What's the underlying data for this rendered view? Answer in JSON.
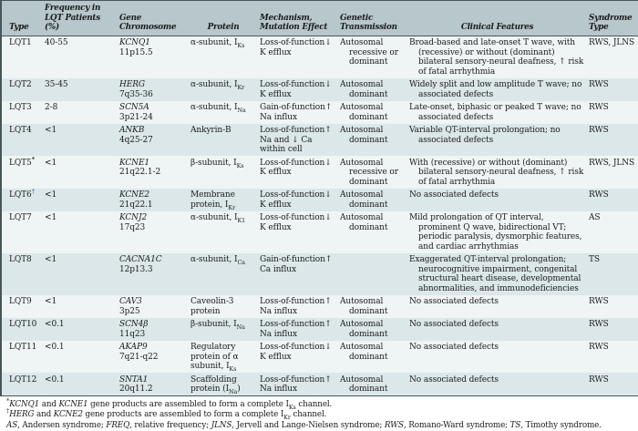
{
  "colors": {
    "header_bg": "#b7c7cb",
    "row_light": "#eff4f4",
    "row_dark": "#dbe7e9",
    "rule": "#46565b",
    "text": "#1c1c1c",
    "page_bg": "#ffffff",
    "dagger_marker": "#4c7fa6",
    "asterisk_marker": "#222222"
  },
  "table": {
    "headers": [
      {
        "id": "type",
        "label": "Type",
        "align": ""
      },
      {
        "id": "frequency",
        "label": "Frequency in\nLQT Patients (%)",
        "align": ""
      },
      {
        "id": "gene-chromosome",
        "label": "Gene\nChromosome",
        "align": ""
      },
      {
        "id": "protein",
        "label": "Protein",
        "align": "center"
      },
      {
        "id": "mechanism",
        "label": "Mechanism,\nMutation Effect",
        "align": ""
      },
      {
        "id": "transmission",
        "label": "Genetic\nTransmission",
        "align": ""
      },
      {
        "id": "clinical-features",
        "label": "Clinical Features",
        "align": "center"
      },
      {
        "id": "syndrome-type",
        "label": "Syndrome\nType",
        "align": ""
      }
    ],
    "rows": [
      {
        "type": "LQT1",
        "marker": "",
        "marker_color": "",
        "frequency": "40-55",
        "gene": "KCNQ1",
        "chromosome": "11p15.5",
        "protein": "α-subunit, I~Ks~",
        "mechanism": "Loss-of-function↓\nK efflux",
        "transmission": "Autosomal recessive or dominant",
        "clinical_features": "Broad-based and late-onset T wave, with (recessive) or without (dominant) bilateral sensory-neural deafness, ↑ risk of fatal arrhythmia",
        "syndrome": "RWS, JLNS"
      },
      {
        "type": "LQT2",
        "marker": "",
        "marker_color": "",
        "frequency": "35-45",
        "gene": "HERG",
        "chromosome": "7q35-36",
        "protein": "α-subunit, I~Kr~",
        "mechanism": "Loss-of-function↓\nK efflux",
        "transmission": "Autosomal dominant",
        "clinical_features": "Widely split and low amplitude T wave; no associated defects",
        "syndrome": "RWS"
      },
      {
        "type": "LQT3",
        "marker": "",
        "marker_color": "",
        "frequency": "2-8",
        "gene": "SCN5A",
        "chromosome": "3p21-24",
        "protein": "α-subunit, I~Na~",
        "mechanism": "Gain-of-function↑\nNa influx",
        "transmission": "Autosomal dominant",
        "clinical_features": "Late-onset, biphasic or peaked T wave; no associated defects",
        "syndrome": "RWS"
      },
      {
        "type": "LQT4",
        "marker": "",
        "marker_color": "",
        "frequency": "<1",
        "gene": "ANKB",
        "chromosome": "4q25-27",
        "protein": "Ankyrin-B",
        "mechanism": "Loss-of-function↑\nNa and ↓ Ca\nwithin cell",
        "transmission": "Autosomal dominant",
        "clinical_features": "Variable QT-interval prolongation; no associated defects",
        "syndrome": "RWS"
      },
      {
        "type": "LQT5",
        "marker": "*",
        "marker_color": "#222222",
        "frequency": "<1",
        "gene": "KCNE1",
        "chromosome": "21q22.1-2",
        "protein": "β-subunit, I~Ks~",
        "mechanism": "Loss-of-function↓\nK efflux",
        "transmission": "Autosomal recessive or dominant",
        "clinical_features": "With (recessive) or without (dominant) bilateral sensory-neural deafness, ↑ risk of fatal arrhythmia",
        "syndrome": "RWS, JLNS"
      },
      {
        "type": "LQT6",
        "marker": "†",
        "marker_color": "#4c7fa6",
        "frequency": "<1",
        "gene": "KCNE2",
        "chromosome": "21q22.1",
        "protein": "Membrane protein, I~Kr~",
        "mechanism": "Loss-of-function↓\nK efflux",
        "transmission": "Autosomal dominant",
        "clinical_features": "No associated defects",
        "syndrome": "RWS"
      },
      {
        "type": "LQT7",
        "marker": "",
        "marker_color": "",
        "frequency": "<1",
        "gene": "KCNJ2",
        "chromosome": "17q23",
        "protein": "α-subunit, I~K1~",
        "mechanism": "Loss-of-function↓\nK efflux",
        "transmission": "Autosomal dominant",
        "clinical_features": "Mild prolongation of QT interval, prominent Q wave, bidirectional VT; periodic paralysis, dysmorphic features, and cardiac arrhythmias",
        "syndrome": "AS"
      },
      {
        "type": "LQT8",
        "marker": "",
        "marker_color": "",
        "frequency": "<1",
        "gene": "CACNA1C",
        "chromosome": "12p13.3",
        "protein": "α-subunit, I~Ca~",
        "mechanism": "Gain-of-function↑\nCa influx",
        "transmission": "",
        "clinical_features": "Exaggerated QT-interval prolongation; neurocognitive impairment, congenital structural heart disease, developmental abnormalities, and immunodeficiencies",
        "syndrome": "TS"
      },
      {
        "type": "LQT9",
        "marker": "",
        "marker_color": "",
        "frequency": "<1",
        "gene": "CAV3",
        "chromosome": "3p25",
        "protein": "Caveolin-3 protein",
        "mechanism": "Loss-of-function↑\nNa influx",
        "transmission": "Autosomal dominant",
        "clinical_features": "No associated defects",
        "syndrome": "RWS"
      },
      {
        "type": "LQT10",
        "marker": "",
        "marker_color": "",
        "frequency": "<0.1",
        "gene": "SCN4β",
        "chromosome": "11q23",
        "protein": "β-subunit, I~Na~",
        "mechanism": "Loss-of-function↑\nNa influx",
        "transmission": "Autosomal dominant",
        "clinical_features": "No associated defects",
        "syndrome": "RWS"
      },
      {
        "type": "LQT11",
        "marker": "",
        "marker_color": "",
        "frequency": "<0.1",
        "gene": "AKAP9",
        "chromosome": "7q21-q22",
        "protein": "Regulatory protein of α subunit, I~Ks~",
        "mechanism": "Loss-of-function↓\nK efflux",
        "transmission": "Autosomal dominant",
        "clinical_features": "No associated defects",
        "syndrome": "RWS"
      },
      {
        "type": "LQT12",
        "marker": "",
        "marker_color": "",
        "frequency": "<0.1",
        "gene": "SNTA1",
        "chromosome": "20q11.2",
        "protein": "Scaffolding protein (I~Na~)",
        "mechanism": "Loss-of-function↑\nNa influx",
        "transmission": "Autosomal dominant",
        "clinical_features": "No associated defects",
        "syndrome": "RWS"
      }
    ]
  },
  "footnotes": [
    "^*^_KCNQ1_ and _KCNE1_ gene products are assembled to form a complete I~Ks~ channel.",
    "^†^_HERG_ and _KCNE2_ gene products are assembled to form a complete I~Kr~ channel.",
    "_AS_, Andersen syndrome; _FREQ_, relative frequency; _JLNS_, Jervell and Lange-Nielsen syndrome; _RWS_, Romano-Ward syndrome; _TS_, Timothy syndrome."
  ]
}
